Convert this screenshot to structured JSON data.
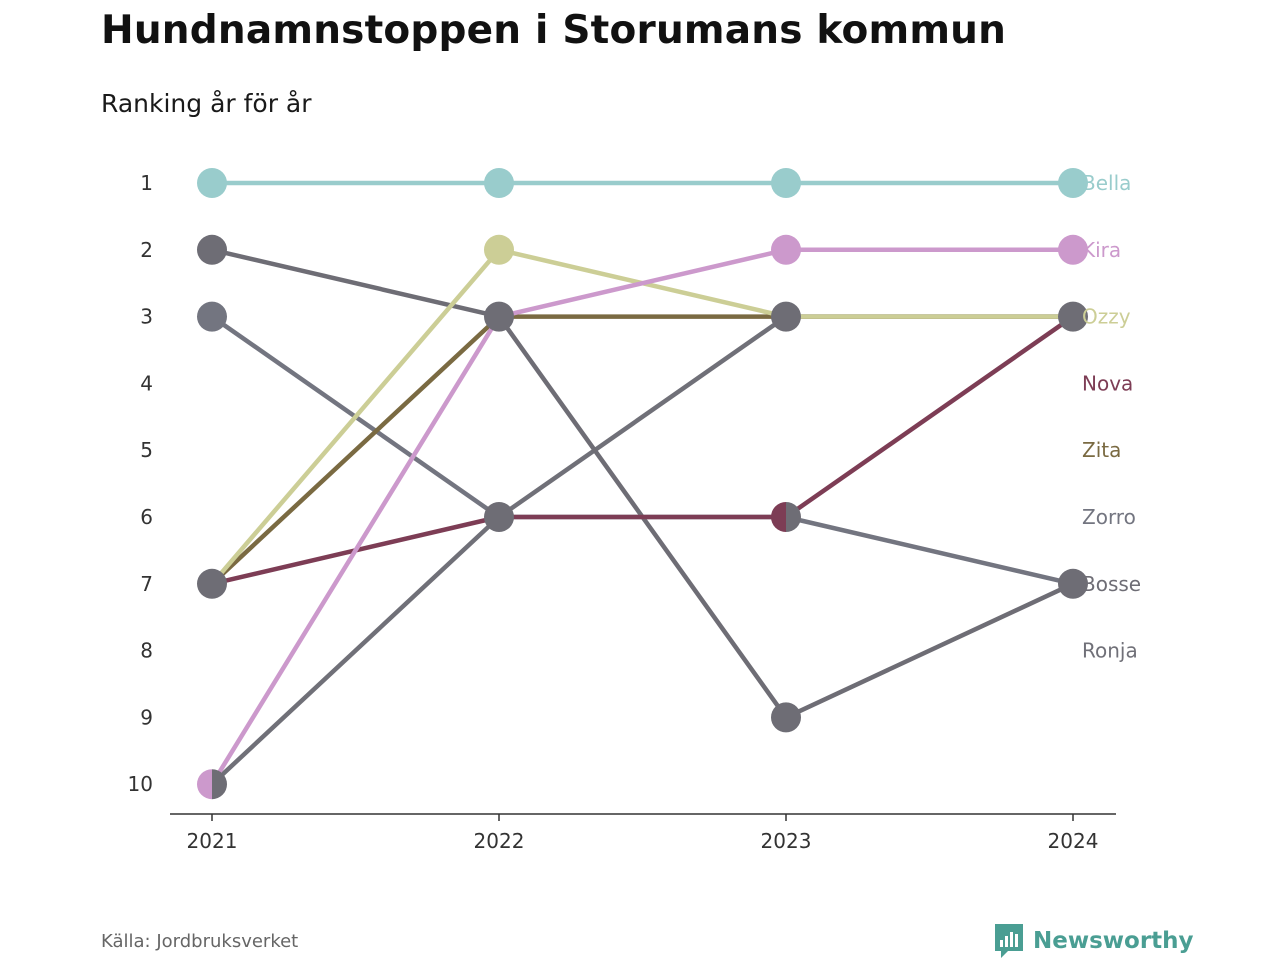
{
  "header": {
    "title": "Hundnamnstoppen i Storumans kommun",
    "subtitle": "Ranking år för år"
  },
  "footer": {
    "source": "Källa: Jordbruksverket",
    "brand": "Newsworthy"
  },
  "chart_data": {
    "type": "line",
    "variant": "bump",
    "x": [
      "2021",
      "2022",
      "2023",
      "2024"
    ],
    "y_ticks": [
      "1",
      "2",
      "3",
      "4",
      "5",
      "6",
      "7",
      "8",
      "9",
      "10"
    ],
    "ylim": [
      1,
      10
    ],
    "y_inverted": true,
    "grid": false,
    "legend_placement": "right-end-labels",
    "series": [
      {
        "name": "Ronja",
        "color": "#707078",
        "values": [
          10,
          6,
          3,
          3
        ]
      },
      {
        "name": "Bosse",
        "color": "#6e6d75",
        "values": [
          2,
          3,
          9,
          7
        ]
      },
      {
        "name": "Zorro",
        "color": "#737580",
        "values": [
          3,
          6,
          6,
          7
        ]
      },
      {
        "name": "Zita",
        "color": "#7a6a42",
        "values": [
          7,
          3,
          3,
          3
        ]
      },
      {
        "name": "Nova",
        "color": "#7d3d55",
        "values": [
          7,
          6,
          6,
          3
        ]
      },
      {
        "name": "Ozzy",
        "color": "#ccce96",
        "values": [
          7,
          2,
          3,
          3
        ]
      },
      {
        "name": "Kira",
        "color": "#cc99cc",
        "values": [
          10,
          3,
          2,
          2
        ]
      },
      {
        "name": "Bella",
        "color": "#99cccc",
        "values": [
          1,
          1,
          1,
          1
        ]
      }
    ],
    "end_labels": [
      {
        "name": "Bella",
        "rank": 1,
        "color": "#99cccc"
      },
      {
        "name": "Kira",
        "rank": 2,
        "color": "#cc99cc"
      },
      {
        "name": "Ozzy",
        "rank": 3,
        "color": "#ccce96"
      },
      {
        "name": "Nova",
        "rank": 4,
        "color": "#7d3d55"
      },
      {
        "name": "Zita",
        "rank": 5,
        "color": "#7a6a42"
      },
      {
        "name": "Zorro",
        "rank": 6,
        "color": "#737580"
      },
      {
        "name": "Bosse",
        "rank": 7,
        "color": "#6e6d75"
      },
      {
        "name": "Ronja",
        "rank": 8,
        "color": "#707078"
      }
    ],
    "markers": [
      {
        "x": "2021",
        "y": 1,
        "colors": [
          "#99cccc"
        ]
      },
      {
        "x": "2022",
        "y": 1,
        "colors": [
          "#99cccc"
        ]
      },
      {
        "x": "2023",
        "y": 1,
        "colors": [
          "#99cccc"
        ]
      },
      {
        "x": "2024",
        "y": 1,
        "colors": [
          "#99cccc"
        ]
      },
      {
        "x": "2021",
        "y": 2,
        "colors": [
          "#6e6d75"
        ]
      },
      {
        "x": "2021",
        "y": 3,
        "colors": [
          "#737580"
        ]
      },
      {
        "x": "2021",
        "y": 7,
        "colors": [
          "#6e6d75"
        ]
      },
      {
        "x": "2021",
        "y": 10,
        "colors": [
          "#cc99cc",
          "#6e6d75"
        ]
      },
      {
        "x": "2022",
        "y": 2,
        "colors": [
          "#ccce96"
        ]
      },
      {
        "x": "2022",
        "y": 3,
        "colors": [
          "#6e6d75"
        ]
      },
      {
        "x": "2022",
        "y": 6,
        "colors": [
          "#6e6d75"
        ]
      },
      {
        "x": "2023",
        "y": 2,
        "colors": [
          "#cc99cc"
        ]
      },
      {
        "x": "2023",
        "y": 3,
        "colors": [
          "#6e6d75"
        ]
      },
      {
        "x": "2023",
        "y": 6,
        "colors": [
          "#7d3d55",
          "#6e6d75"
        ]
      },
      {
        "x": "2023",
        "y": 9,
        "colors": [
          "#6e6d75"
        ]
      },
      {
        "x": "2024",
        "y": 2,
        "colors": [
          "#cc99cc"
        ]
      },
      {
        "x": "2024",
        "y": 3,
        "colors": [
          "#6e6d75"
        ]
      },
      {
        "x": "2024",
        "y": 7,
        "colors": [
          "#6e6d75"
        ]
      }
    ]
  }
}
